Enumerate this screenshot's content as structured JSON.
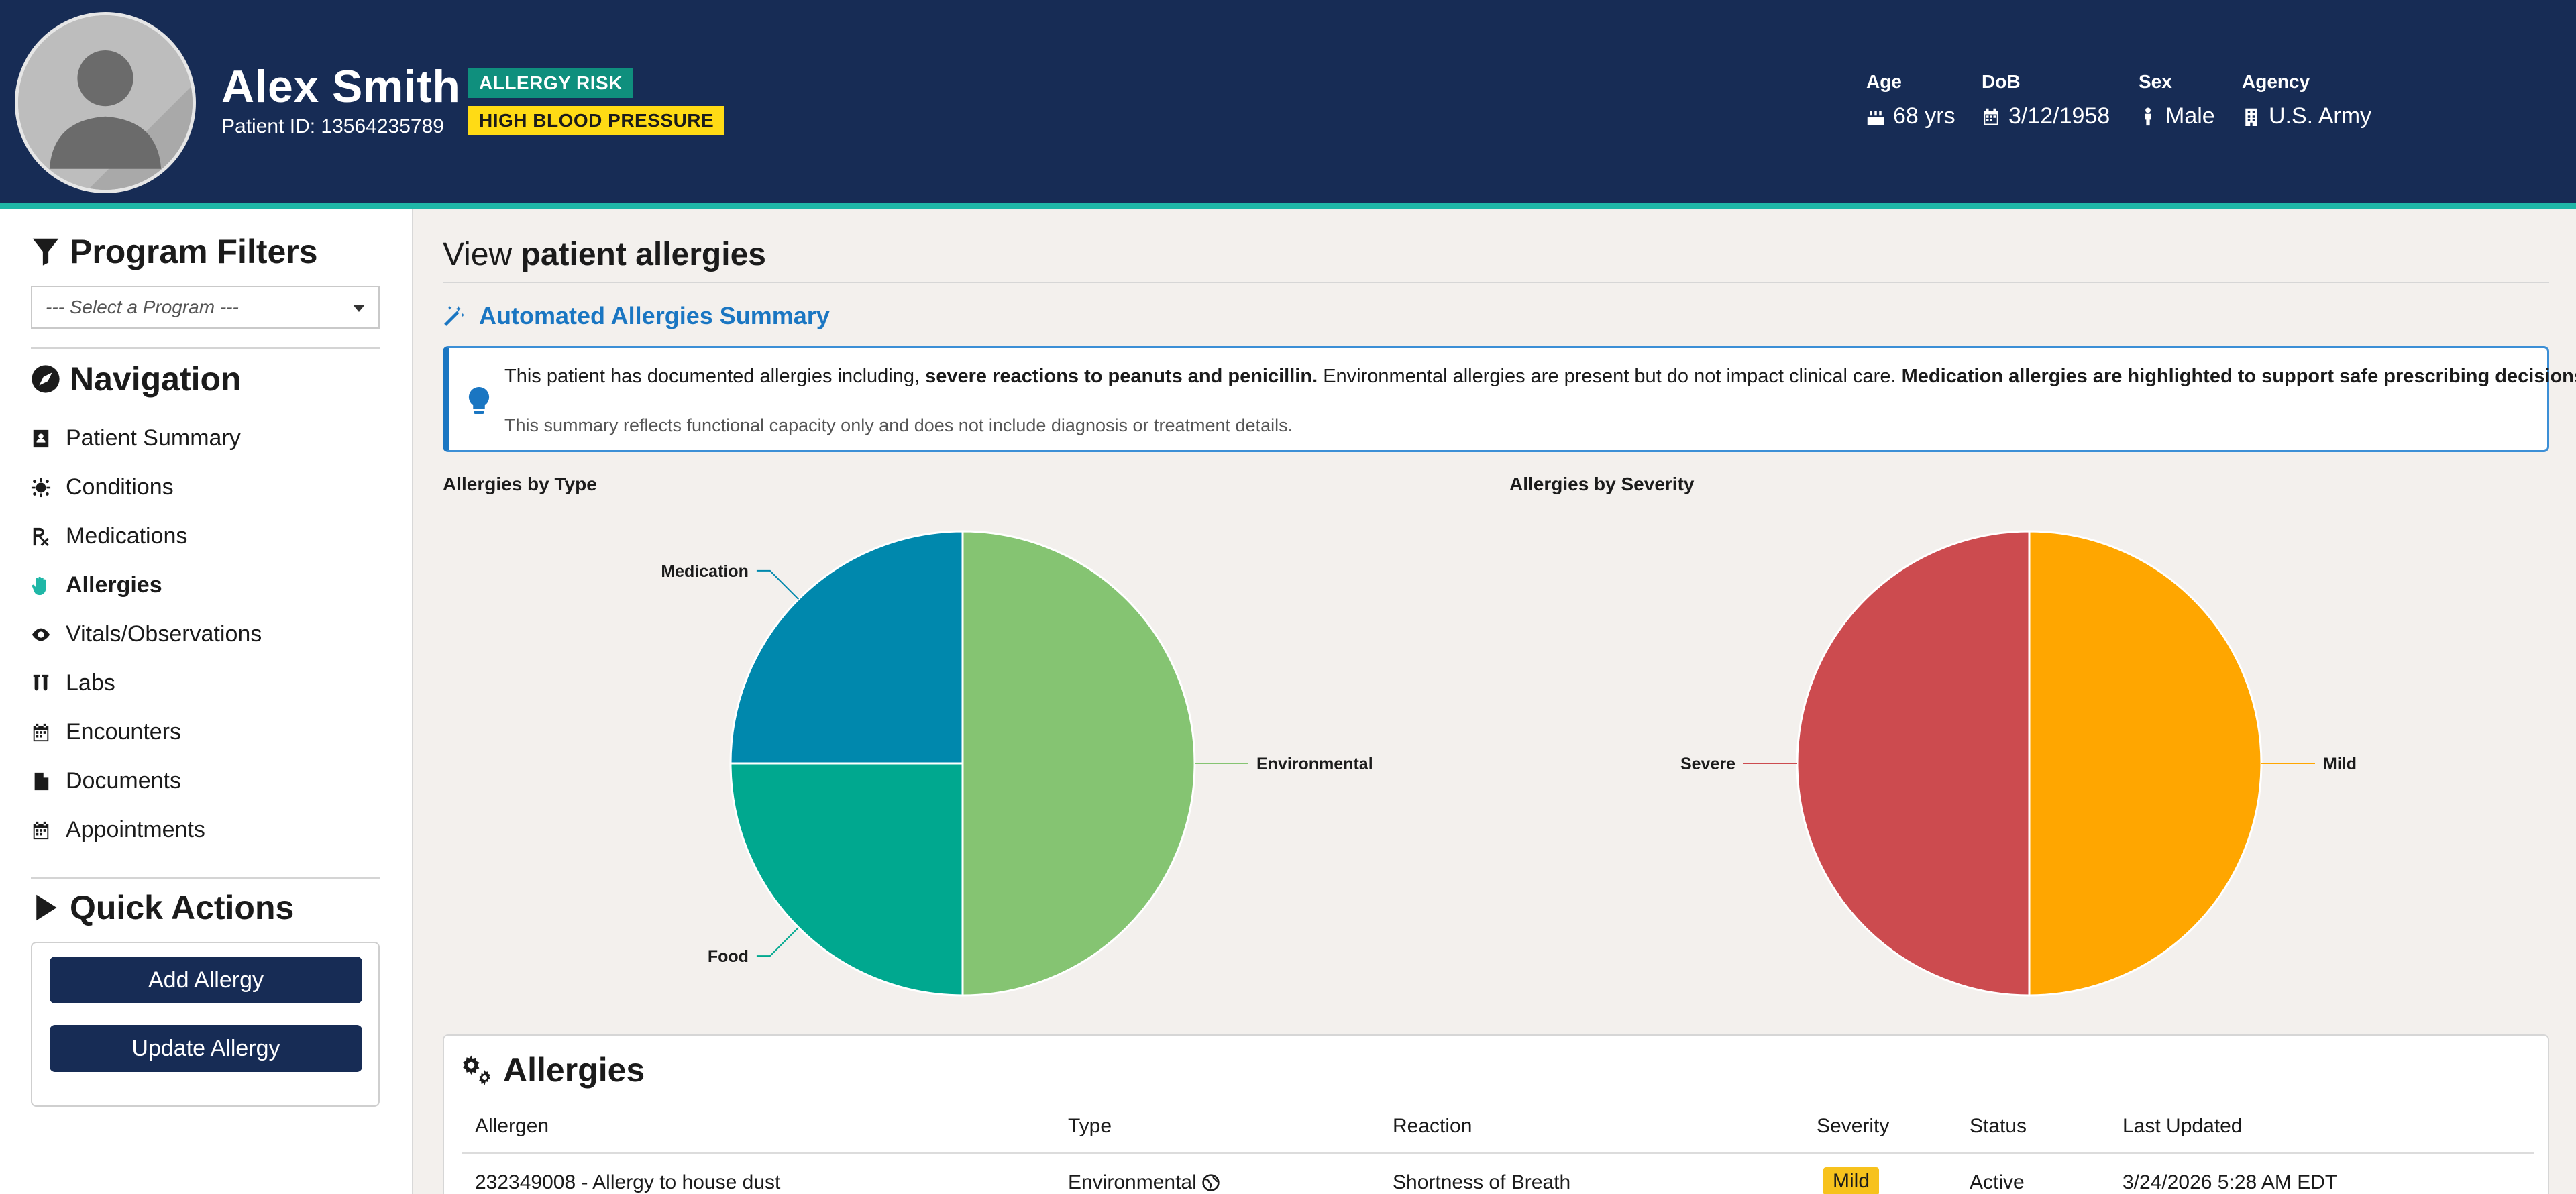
{
  "patient": {
    "name": "Alex Smith",
    "id_text": "Patient ID: 13564235789",
    "badges": [
      "ALLERGY RISK",
      "HIGH BLOOD PRESSURE"
    ],
    "age_label": "Age",
    "age_value": "68 yrs",
    "dob_label": "DoB",
    "dob_value": "3/12/1958",
    "sex_label": "Sex",
    "sex_value": "Male",
    "agency_label": "Agency",
    "agency_value": "U.S. Army"
  },
  "sidebar": {
    "program_filters_title": "Program Filters",
    "program_select_placeholder": "--- Select a Program ---",
    "navigation_title": "Navigation",
    "nav_items": [
      {
        "label": "Patient Summary",
        "icon": "id-card-icon",
        "active": false
      },
      {
        "label": "Conditions",
        "icon": "virus-icon",
        "active": false
      },
      {
        "label": "Medications",
        "icon": "prescription-icon",
        "active": false
      },
      {
        "label": "Allergies",
        "icon": "hand-icon",
        "active": true
      },
      {
        "label": "Vitals/Observations",
        "icon": "eye-icon",
        "active": false
      },
      {
        "label": "Labs",
        "icon": "test-tubes-icon",
        "active": false
      },
      {
        "label": "Encounters",
        "icon": "calendar-icon",
        "active": false
      },
      {
        "label": "Documents",
        "icon": "document-icon",
        "active": false
      },
      {
        "label": "Appointments",
        "icon": "calendar-icon",
        "active": false
      }
    ],
    "quick_actions_title": "Quick Actions",
    "add_allergy": "Add Allergy",
    "update_allergy": "Update Allergy"
  },
  "main": {
    "title_prefix": "View",
    "title_bold": "patient allergies",
    "summary_link": "Automated Allergies Summary",
    "summary_text_1": "This patient has documented allergies including,",
    "summary_bold_1": "severe reactions to peanuts and penicillin.",
    "summary_text_2": "Environmental allergies are present but do not impact clinical care.",
    "summary_bold_2": "Medication allergies are highlighted to support safe prescribing decisions.",
    "summary_note": "This summary reflects functional capacity only and does not include diagnosis or treatment details."
  },
  "chart_data": [
    {
      "type": "pie",
      "title": "Allergies by Type",
      "categories": [
        "Environmental",
        "Food",
        "Medication"
      ],
      "values": [
        2,
        1,
        1
      ],
      "colors": [
        "#85c472",
        "#00a88f",
        "#0088ad"
      ]
    },
    {
      "type": "pie",
      "title": "Allergies by Severity",
      "categories": [
        "Mild",
        "Severe"
      ],
      "values": [
        1,
        1
      ],
      "colors": [
        "#ffa600",
        "#cc4b4f"
      ]
    }
  ],
  "allergies_table": {
    "title": "Allergies",
    "headers": [
      "Allergen",
      "Type",
      "Reaction",
      "Severity",
      "Status",
      "Last Updated"
    ],
    "rows": [
      {
        "allergen": "232349008 - Allergy to house dust",
        "type": "Environmental",
        "reaction": "Shortness of Breath",
        "severity": "Mild",
        "status": "Active",
        "last_updated": "3/24/2026 5:28 AM EDT"
      }
    ]
  }
}
